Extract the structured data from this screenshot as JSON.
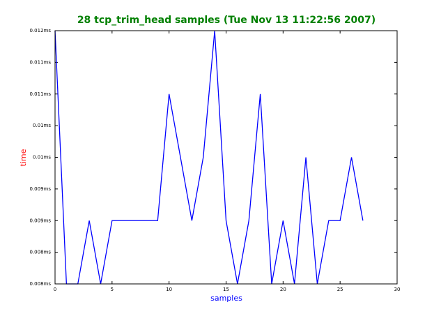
{
  "chart_data": {
    "type": "line",
    "title": "28 tcp_trim_head samples (Tue Nov 13 11:22:56 2007)",
    "x_label": "samples",
    "y_label": "time",
    "x": [
      0,
      1,
      2,
      3,
      4,
      5,
      6,
      7,
      8,
      9,
      10,
      11,
      12,
      13,
      14,
      15,
      16,
      17,
      18,
      19,
      20,
      21,
      22,
      23,
      24,
      25,
      26,
      27
    ],
    "series": [
      {
        "name": "tcp_trim_head",
        "color": "#0000ff",
        "values": [
          0.012,
          0.008,
          0.008,
          0.009,
          0.008,
          0.009,
          0.009,
          0.009,
          0.009,
          0.009,
          0.011,
          0.01,
          0.009,
          0.01,
          0.012,
          0.009,
          0.008,
          0.009,
          0.011,
          0.008,
          0.009,
          0.008,
          0.01,
          0.008,
          0.009,
          0.009,
          0.01,
          0.009
        ]
      }
    ],
    "xlim": [
      0,
      30
    ],
    "xticks": [
      0,
      5,
      10,
      15,
      20,
      25,
      30
    ],
    "ylim": [
      0.008,
      0.012
    ],
    "yticks": [
      {
        "value": 0.008,
        "label": "0.008ms"
      },
      {
        "value": 0.0085,
        "label": "0.008ms"
      },
      {
        "value": 0.009,
        "label": "0.009ms"
      },
      {
        "value": 0.0095,
        "label": "0.009ms"
      },
      {
        "value": 0.01,
        "label": "0.01ms"
      },
      {
        "value": 0.0105,
        "label": "0.01ms"
      },
      {
        "value": 0.011,
        "label": "0.011ms"
      },
      {
        "value": 0.0115,
        "label": "0.011ms"
      },
      {
        "value": 0.012,
        "label": "0.012ms"
      }
    ],
    "title_color": "#008000",
    "x_label_color": "#0000ff",
    "y_label_color": "#ff0000"
  }
}
